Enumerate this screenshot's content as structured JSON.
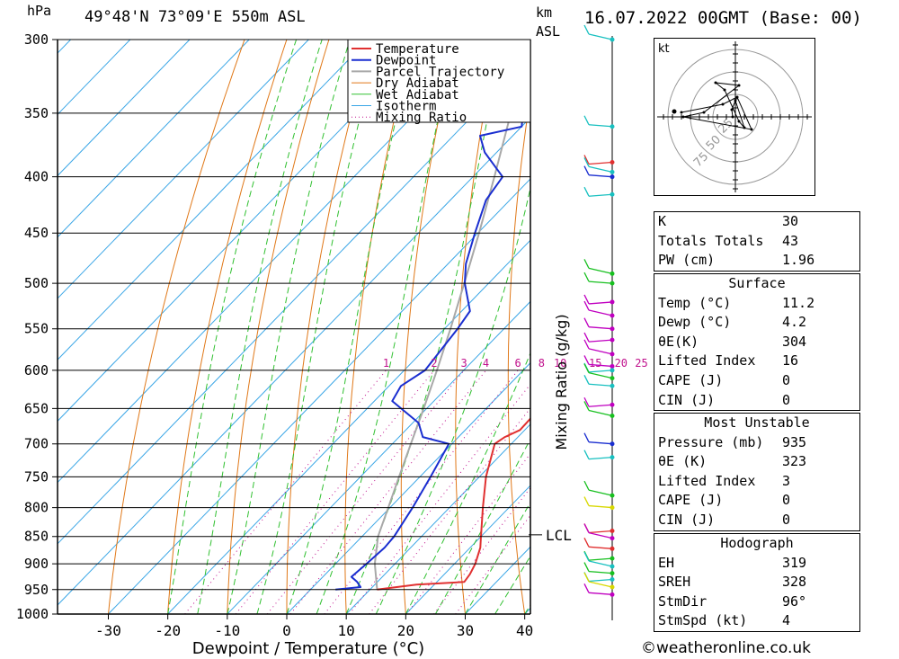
{
  "header": {
    "pressure_unit": "hPa",
    "location": "49°48'N 73°09'E 550m ASL",
    "km_label": "km",
    "asl_label": "ASL",
    "datetime": "16.07.2022 00GMT (Base: 00)"
  },
  "chart_data": {
    "type": "line",
    "title": "Skew-T log-P sounding",
    "xlabel": "Dewpoint / Temperature (°C)",
    "ylabel": "hPa",
    "secondary_ylabel": "Mixing Ratio (g/kg)",
    "xlim": [
      -40,
      40
    ],
    "ylim": [
      1000,
      300
    ],
    "pressure_ticks": [
      300,
      350,
      400,
      450,
      500,
      550,
      600,
      650,
      700,
      750,
      800,
      850,
      900,
      950,
      1000
    ],
    "temp_ticks": [
      -30,
      -20,
      -10,
      0,
      10,
      20,
      30,
      40
    ],
    "mixing_ratio_labels": [
      "1",
      "2",
      "3",
      "4",
      "6",
      "8",
      "10",
      "15",
      "20",
      "25"
    ],
    "mixing_ratio_values": [
      1,
      2,
      3,
      4,
      6,
      8,
      10,
      15,
      20,
      25
    ],
    "legend": [
      "Temperature",
      "Dewpoint",
      "Parcel Trajectory",
      "Dry Adiabat",
      "Wet Adiabat",
      "Isotherm",
      "Mixing Ratio"
    ],
    "legend_position": "top",
    "lcl_label": "LCL",
    "lcl_pressure": 847,
    "series": [
      {
        "name": "Temperature",
        "color": "#e03030",
        "points": [
          [
            950,
            11.2
          ],
          [
            940,
            17
          ],
          [
            935,
            24.6
          ],
          [
            920,
            24.3
          ],
          [
            900,
            23.5
          ],
          [
            870,
            21.7
          ],
          [
            850,
            20.0
          ],
          [
            800,
            15.6
          ],
          [
            750,
            11.1
          ],
          [
            700,
            7.2
          ],
          [
            690,
            7.8
          ],
          [
            680,
            9.2
          ],
          [
            650,
            9.0
          ],
          [
            630,
            8.0
          ],
          [
            600,
            5.5
          ],
          [
            550,
            0.8
          ],
          [
            530,
            -0.6
          ],
          [
            500,
            -0.8
          ],
          [
            470,
            -3.5
          ],
          [
            450,
            -5.8
          ],
          [
            420,
            -9.6
          ],
          [
            400,
            -12.5
          ],
          [
            380,
            -14.5
          ],
          [
            350,
            -17.0
          ],
          [
            330,
            -20.0
          ],
          [
            300,
            -27.0
          ]
        ]
      },
      {
        "name": "Dewpoint",
        "color": "#1a2ed0",
        "points": [
          [
            950,
            4.2
          ],
          [
            945,
            8.0
          ],
          [
            935,
            6.6
          ],
          [
            925,
            4.8
          ],
          [
            900,
            5.2
          ],
          [
            870,
            5.6
          ],
          [
            850,
            5.4
          ],
          [
            800,
            3.8
          ],
          [
            750,
            1.8
          ],
          [
            700,
            -0.5
          ],
          [
            690,
            -6
          ],
          [
            670,
            -9
          ],
          [
            640,
            -17
          ],
          [
            620,
            -18
          ],
          [
            600,
            -16.5
          ],
          [
            550,
            -17.8
          ],
          [
            530,
            -18.6
          ],
          [
            500,
            -24
          ],
          [
            480,
            -27
          ],
          [
            450,
            -30.5
          ],
          [
            420,
            -34
          ],
          [
            400,
            -35
          ],
          [
            380,
            -42
          ],
          [
            367,
            -45.5
          ],
          [
            360,
            -40
          ],
          [
            340,
            -44
          ],
          [
            330,
            -45
          ],
          [
            300,
            -52
          ]
        ]
      },
      {
        "name": "Parcel Trajectory",
        "color": "#a8a8a8",
        "points": [
          [
            950,
            11.2
          ],
          [
            900,
            6.6
          ],
          [
            850,
            2.7
          ],
          [
            800,
            -0.3
          ],
          [
            750,
            -3.5
          ],
          [
            700,
            -6.9
          ],
          [
            650,
            -10.5
          ],
          [
            600,
            -14.5
          ],
          [
            550,
            -19
          ],
          [
            500,
            -24.1
          ],
          [
            450,
            -29.8
          ],
          [
            400,
            -36.4
          ],
          [
            350,
            -44
          ],
          [
            300,
            -53
          ]
        ]
      }
    ],
    "wind_barbs": {
      "pressures": [
        300,
        360,
        388,
        396,
        400,
        415,
        490,
        500,
        520,
        535,
        550,
        563,
        580,
        595,
        600,
        610,
        620,
        645,
        660,
        700,
        720,
        780,
        800,
        840,
        853,
        872,
        890,
        905,
        918,
        930,
        945,
        960
      ],
      "colors": [
        "#18c0c0",
        "#18c0c0",
        "#e03030",
        "#18c0c0",
        "#1a2ed0",
        "#18c0c0",
        "#18c020",
        "#18c020",
        "#c000c0",
        "#c000c0",
        "#c000c0",
        "#c000c0",
        "#c000c0",
        "#c000c0",
        "#18c0c0",
        "#18c020",
        "#18c0c0",
        "#c000c0",
        "#18c020",
        "#1a2ed0",
        "#18c0c0",
        "#18c020",
        "#d8d800",
        "#e03030",
        "#c000c0",
        "#e03030",
        "#18c020",
        "#18c0c0",
        "#18c020",
        "#18c0c0",
        "#d8d800",
        "#c000c0"
      ]
    }
  },
  "hodograph": {
    "unit": "kt",
    "ring_labels": [
      "25",
      "50",
      "75"
    ],
    "ring_values": [
      25,
      50,
      75
    ],
    "points_kt": [
      [
        -3,
        0
      ],
      [
        -4,
        8
      ],
      [
        0,
        18
      ],
      [
        10,
        -12
      ],
      [
        4,
        -5
      ],
      [
        -12,
        30
      ],
      [
        -22,
        38
      ],
      [
        4,
        35
      ],
      [
        -35,
        5
      ],
      [
        -58,
        0
      ],
      [
        18,
        -14
      ],
      [
        2,
        22
      ],
      [
        -14,
        14
      ],
      [
        -60,
        5
      ]
    ]
  },
  "indices": {
    "general": [
      {
        "label": "K",
        "value": "30"
      },
      {
        "label": "Totals Totals",
        "value": "43"
      },
      {
        "label": "PW (cm)",
        "value": "1.96"
      }
    ],
    "surface_title": "Surface",
    "surface": [
      {
        "label": "Temp (°C)",
        "value": "11.2"
      },
      {
        "label": "Dewp (°C)",
        "value": "4.2"
      },
      {
        "label": "θE(K)",
        "value": "304"
      },
      {
        "label": "Lifted Index",
        "value": "16"
      },
      {
        "label": "CAPE (J)",
        "value": "0"
      },
      {
        "label": "CIN (J)",
        "value": "0"
      }
    ],
    "unstable_title": "Most Unstable",
    "unstable": [
      {
        "label": "Pressure (mb)",
        "value": "935"
      },
      {
        "label": "θE (K)",
        "value": "323"
      },
      {
        "label": "Lifted Index",
        "value": "3"
      },
      {
        "label": "CAPE (J)",
        "value": "0"
      },
      {
        "label": "CIN (J)",
        "value": "0"
      }
    ],
    "hodograph_title": "Hodograph",
    "hodo_params": [
      {
        "label": "EH",
        "value": "319"
      },
      {
        "label": "SREH",
        "value": "328"
      },
      {
        "label": "StmDir",
        "value": "96°"
      },
      {
        "label": "StmSpd (kt)",
        "value": "4"
      }
    ]
  },
  "footer": {
    "credit": "©weatheronline.co.uk"
  }
}
